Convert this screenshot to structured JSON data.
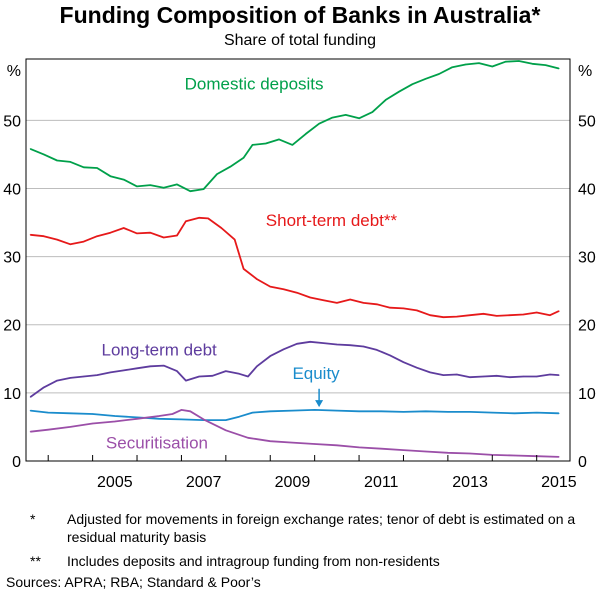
{
  "chart_data": {
    "type": "line",
    "title": "Funding Composition of Banks in Australia*",
    "subtitle": "Share of total funding",
    "ylabel_left": "%",
    "ylabel_right": "%",
    "ylim": [
      0,
      59
    ],
    "yticks": [
      0,
      10,
      20,
      30,
      40,
      50
    ],
    "xlim": [
      2003.5,
      2015.75
    ],
    "xticks": [
      2005,
      2007,
      2009,
      2011,
      2013,
      2015
    ],
    "grid": true,
    "series": [
      {
        "name": "Domestic deposits",
        "color": "#00A04A",
        "points": [
          [
            2003.6,
            45.8
          ],
          [
            2003.9,
            45.0
          ],
          [
            2004.2,
            44.1
          ],
          [
            2004.5,
            43.9
          ],
          [
            2004.8,
            43.1
          ],
          [
            2005.1,
            43.0
          ],
          [
            2005.4,
            41.8
          ],
          [
            2005.7,
            41.3
          ],
          [
            2006.0,
            40.3
          ],
          [
            2006.3,
            40.5
          ],
          [
            2006.6,
            40.1
          ],
          [
            2006.9,
            40.6
          ],
          [
            2007.2,
            39.6
          ],
          [
            2007.5,
            39.9
          ],
          [
            2007.8,
            42.1
          ],
          [
            2008.1,
            43.2
          ],
          [
            2008.4,
            44.5
          ],
          [
            2008.6,
            46.4
          ],
          [
            2008.9,
            46.6
          ],
          [
            2009.2,
            47.2
          ],
          [
            2009.5,
            46.4
          ],
          [
            2009.8,
            48.0
          ],
          [
            2010.1,
            49.5
          ],
          [
            2010.4,
            50.4
          ],
          [
            2010.7,
            50.8
          ],
          [
            2011.0,
            50.3
          ],
          [
            2011.3,
            51.2
          ],
          [
            2011.6,
            53.0
          ],
          [
            2011.9,
            54.2
          ],
          [
            2012.2,
            55.3
          ],
          [
            2012.5,
            56.1
          ],
          [
            2012.8,
            56.8
          ],
          [
            2013.1,
            57.8
          ],
          [
            2013.4,
            58.2
          ],
          [
            2013.7,
            58.4
          ],
          [
            2014.0,
            57.9
          ],
          [
            2014.3,
            58.6
          ],
          [
            2014.6,
            58.7
          ],
          [
            2014.9,
            58.3
          ],
          [
            2015.2,
            58.1
          ],
          [
            2015.5,
            57.6
          ]
        ]
      },
      {
        "name": "Short-term debt**",
        "color": "#E6191A",
        "points": [
          [
            2003.6,
            33.2
          ],
          [
            2003.9,
            33.0
          ],
          [
            2004.2,
            32.5
          ],
          [
            2004.5,
            31.8
          ],
          [
            2004.8,
            32.2
          ],
          [
            2005.1,
            33.0
          ],
          [
            2005.4,
            33.5
          ],
          [
            2005.7,
            34.2
          ],
          [
            2006.0,
            33.4
          ],
          [
            2006.3,
            33.5
          ],
          [
            2006.6,
            32.8
          ],
          [
            2006.9,
            33.1
          ],
          [
            2007.1,
            35.2
          ],
          [
            2007.4,
            35.7
          ],
          [
            2007.6,
            35.6
          ],
          [
            2007.9,
            34.2
          ],
          [
            2008.2,
            32.5
          ],
          [
            2008.4,
            28.2
          ],
          [
            2008.7,
            26.7
          ],
          [
            2009.0,
            25.6
          ],
          [
            2009.3,
            25.2
          ],
          [
            2009.6,
            24.7
          ],
          [
            2009.9,
            24.0
          ],
          [
            2010.2,
            23.6
          ],
          [
            2010.5,
            23.2
          ],
          [
            2010.8,
            23.7
          ],
          [
            2011.1,
            23.2
          ],
          [
            2011.4,
            23.0
          ],
          [
            2011.7,
            22.5
          ],
          [
            2012.0,
            22.4
          ],
          [
            2012.3,
            22.1
          ],
          [
            2012.6,
            21.4
          ],
          [
            2012.9,
            21.1
          ],
          [
            2013.2,
            21.2
          ],
          [
            2013.5,
            21.4
          ],
          [
            2013.8,
            21.6
          ],
          [
            2014.1,
            21.3
          ],
          [
            2014.4,
            21.4
          ],
          [
            2014.7,
            21.5
          ],
          [
            2015.0,
            21.8
          ],
          [
            2015.3,
            21.4
          ],
          [
            2015.5,
            22.0
          ]
        ]
      },
      {
        "name": "Long-term debt",
        "color": "#5E3C9E",
        "points": [
          [
            2003.6,
            9.4
          ],
          [
            2003.9,
            10.8
          ],
          [
            2004.2,
            11.8
          ],
          [
            2004.5,
            12.2
          ],
          [
            2004.8,
            12.4
          ],
          [
            2005.1,
            12.6
          ],
          [
            2005.4,
            13.0
          ],
          [
            2005.7,
            13.3
          ],
          [
            2006.0,
            13.6
          ],
          [
            2006.3,
            13.9
          ],
          [
            2006.6,
            14.0
          ],
          [
            2006.9,
            13.2
          ],
          [
            2007.1,
            11.8
          ],
          [
            2007.4,
            12.4
          ],
          [
            2007.7,
            12.5
          ],
          [
            2008.0,
            13.2
          ],
          [
            2008.3,
            12.8
          ],
          [
            2008.5,
            12.4
          ],
          [
            2008.7,
            13.9
          ],
          [
            2009.0,
            15.4
          ],
          [
            2009.3,
            16.4
          ],
          [
            2009.6,
            17.2
          ],
          [
            2009.9,
            17.5
          ],
          [
            2010.2,
            17.3
          ],
          [
            2010.5,
            17.1
          ],
          [
            2010.8,
            17.0
          ],
          [
            2011.1,
            16.8
          ],
          [
            2011.4,
            16.3
          ],
          [
            2011.7,
            15.5
          ],
          [
            2012.0,
            14.5
          ],
          [
            2012.3,
            13.7
          ],
          [
            2012.6,
            13.0
          ],
          [
            2012.9,
            12.6
          ],
          [
            2013.2,
            12.7
          ],
          [
            2013.5,
            12.3
          ],
          [
            2013.8,
            12.4
          ],
          [
            2014.1,
            12.5
          ],
          [
            2014.4,
            12.3
          ],
          [
            2014.7,
            12.4
          ],
          [
            2015.0,
            12.4
          ],
          [
            2015.3,
            12.7
          ],
          [
            2015.5,
            12.6
          ]
        ]
      },
      {
        "name": "Equity",
        "color": "#1A8CCC",
        "points": [
          [
            2003.6,
            7.4
          ],
          [
            2004.0,
            7.1
          ],
          [
            2004.5,
            7.0
          ],
          [
            2005.0,
            6.9
          ],
          [
            2005.5,
            6.6
          ],
          [
            2006.0,
            6.4
          ],
          [
            2006.5,
            6.2
          ],
          [
            2007.0,
            6.1
          ],
          [
            2007.5,
            6.0
          ],
          [
            2008.0,
            6.0
          ],
          [
            2008.3,
            6.5
          ],
          [
            2008.6,
            7.1
          ],
          [
            2009.0,
            7.3
          ],
          [
            2009.5,
            7.4
          ],
          [
            2010.0,
            7.5
          ],
          [
            2010.5,
            7.4
          ],
          [
            2011.0,
            7.3
          ],
          [
            2011.5,
            7.3
          ],
          [
            2012.0,
            7.2
          ],
          [
            2012.5,
            7.3
          ],
          [
            2013.0,
            7.2
          ],
          [
            2013.5,
            7.2
          ],
          [
            2014.0,
            7.1
          ],
          [
            2014.5,
            7.0
          ],
          [
            2015.0,
            7.1
          ],
          [
            2015.5,
            7.0
          ]
        ]
      },
      {
        "name": "Securitisation",
        "color": "#9B4FA8",
        "points": [
          [
            2003.6,
            4.3
          ],
          [
            2004.0,
            4.6
          ],
          [
            2004.5,
            5.0
          ],
          [
            2005.0,
            5.5
          ],
          [
            2005.5,
            5.8
          ],
          [
            2006.0,
            6.2
          ],
          [
            2006.5,
            6.6
          ],
          [
            2006.8,
            6.9
          ],
          [
            2007.0,
            7.5
          ],
          [
            2007.2,
            7.3
          ],
          [
            2007.5,
            6.1
          ],
          [
            2008.0,
            4.5
          ],
          [
            2008.5,
            3.4
          ],
          [
            2009.0,
            2.9
          ],
          [
            2009.5,
            2.7
          ],
          [
            2010.0,
            2.5
          ],
          [
            2010.5,
            2.3
          ],
          [
            2011.0,
            2.0
          ],
          [
            2011.5,
            1.8
          ],
          [
            2012.0,
            1.6
          ],
          [
            2012.5,
            1.4
          ],
          [
            2013.0,
            1.2
          ],
          [
            2013.5,
            1.1
          ],
          [
            2014.0,
            0.9
          ],
          [
            2014.5,
            0.8
          ],
          [
            2015.0,
            0.7
          ],
          [
            2015.5,
            0.6
          ]
        ]
      }
    ],
    "series_labels": {
      "Domestic deposits": "Domestic deposits",
      "Short-term debt**": "Short-term debt**",
      "Long-term debt": "Long-term debt",
      "Equity": "Equity",
      "Securitisation": "Securitisation"
    }
  },
  "footnotes": [
    {
      "mark": "*",
      "text": "Adjusted for movements in foreign exchange rates; tenor of debt is estimated on a residual maturity basis"
    },
    {
      "mark": "**",
      "text": "Includes deposits and intragroup funding from non-residents"
    }
  ],
  "sources": "Sources:   APRA; RBA; Standard & Poor’s"
}
